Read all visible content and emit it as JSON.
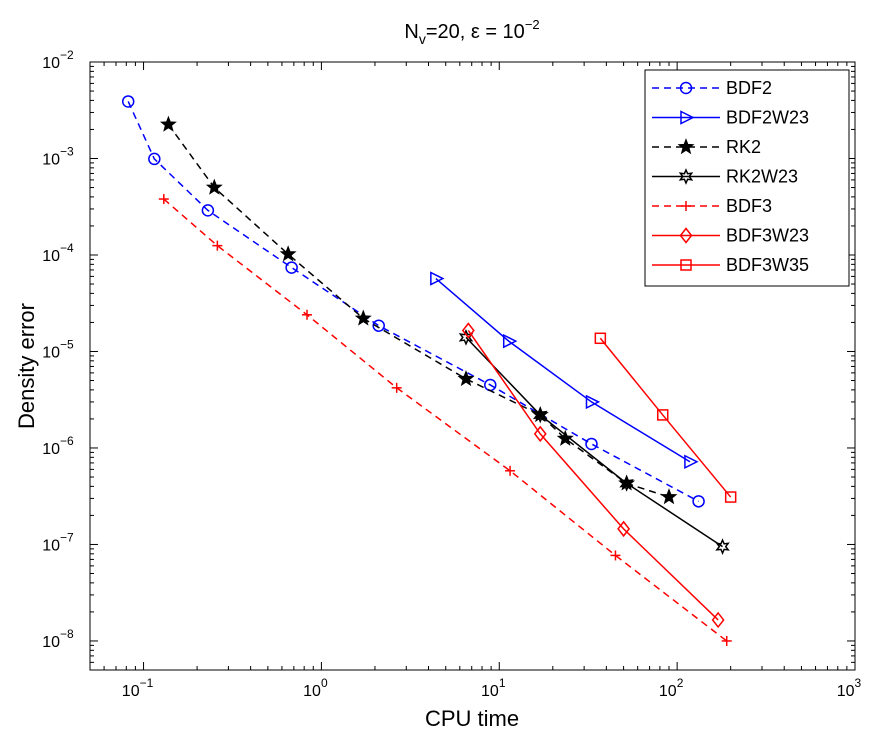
{
  "chart_data": {
    "type": "line",
    "title": "N_v=20, ε = 10^−2",
    "title_parts": {
      "main": "N",
      "sub": "v",
      "mid": "=20, ε = 10",
      "sup": "−2"
    },
    "xlabel": "CPU time",
    "ylabel": "Density error",
    "xscale": "log",
    "yscale": "log",
    "xlim": [
      0.05,
      1000
    ],
    "ylim": [
      5e-09,
      0.01
    ],
    "grid": false,
    "legend_position": "top-right",
    "x_ticks": [
      {
        "value": 0.1,
        "base": "10",
        "exp": "−1"
      },
      {
        "value": 1,
        "base": "10",
        "exp": "0"
      },
      {
        "value": 10,
        "base": "10",
        "exp": "1"
      },
      {
        "value": 100,
        "base": "10",
        "exp": "2"
      },
      {
        "value": 1000,
        "base": "10",
        "exp": "3"
      }
    ],
    "y_ticks": [
      {
        "value": 1e-08,
        "base": "10",
        "exp": "−8"
      },
      {
        "value": 1e-07,
        "base": "10",
        "exp": "−7"
      },
      {
        "value": 1e-06,
        "base": "10",
        "exp": "−6"
      },
      {
        "value": 1e-05,
        "base": "10",
        "exp": "−5"
      },
      {
        "value": 0.0001,
        "base": "10",
        "exp": "−4"
      },
      {
        "value": 0.001,
        "base": "10",
        "exp": "−3"
      },
      {
        "value": 0.01,
        "base": "10",
        "exp": "−2"
      }
    ],
    "series": [
      {
        "name": "BDF2",
        "color": "#0000ff",
        "dash": "dashed",
        "marker": "circle",
        "x": [
          0.082,
          0.115,
          0.23,
          0.68,
          2.1,
          8.9,
          33,
          132
        ],
        "y": [
          0.0039,
          0.00099,
          0.00029,
          7.4e-05,
          1.85e-05,
          4.5e-06,
          1.1e-06,
          2.8e-07
        ]
      },
      {
        "name": "BDF2W23",
        "color": "#0000ff",
        "dash": "solid",
        "marker": "triangle-right",
        "x": [
          4.4,
          11.3,
          33,
          118
        ],
        "y": [
          5.7e-05,
          1.28e-05,
          3e-06,
          7.2e-07
        ]
      },
      {
        "name": "RK2",
        "color": "#000000",
        "dash": "dashed",
        "marker": "star-filled",
        "x": [
          0.138,
          0.25,
          0.65,
          1.72,
          6.5,
          17,
          23.5,
          52,
          90
        ],
        "y": [
          0.00225,
          0.0005,
          0.000102,
          2.2e-05,
          5.2e-06,
          2.2e-06,
          1.25e-06,
          4.3e-07,
          3.1e-07
        ]
      },
      {
        "name": "RK2W23",
        "color": "#000000",
        "dash": "solid",
        "marker": "star-open",
        "x": [
          6.5,
          17,
          52,
          180
        ],
        "y": [
          1.4e-05,
          2.2e-06,
          4.3e-07,
          9.5e-08
        ]
      },
      {
        "name": "BDF3",
        "color": "#ff0000",
        "dash": "dashed",
        "marker": "plus",
        "x": [
          0.13,
          0.26,
          0.83,
          2.65,
          11.5,
          45,
          190
        ],
        "y": [
          0.00038,
          0.000125,
          2.4e-05,
          4.2e-06,
          5.8e-07,
          7.7e-08,
          1e-08
        ]
      },
      {
        "name": "BDF3W23",
        "color": "#ff0000",
        "dash": "solid",
        "marker": "diamond",
        "x": [
          6.7,
          17,
          50,
          170
        ],
        "y": [
          1.65e-05,
          1.4e-06,
          1.45e-07,
          1.65e-08
        ]
      },
      {
        "name": "BDF3W35",
        "color": "#ff0000",
        "dash": "solid",
        "marker": "square",
        "x": [
          37,
          83,
          200
        ],
        "y": [
          1.37e-05,
          2.2e-06,
          3.1e-07
        ]
      }
    ]
  }
}
